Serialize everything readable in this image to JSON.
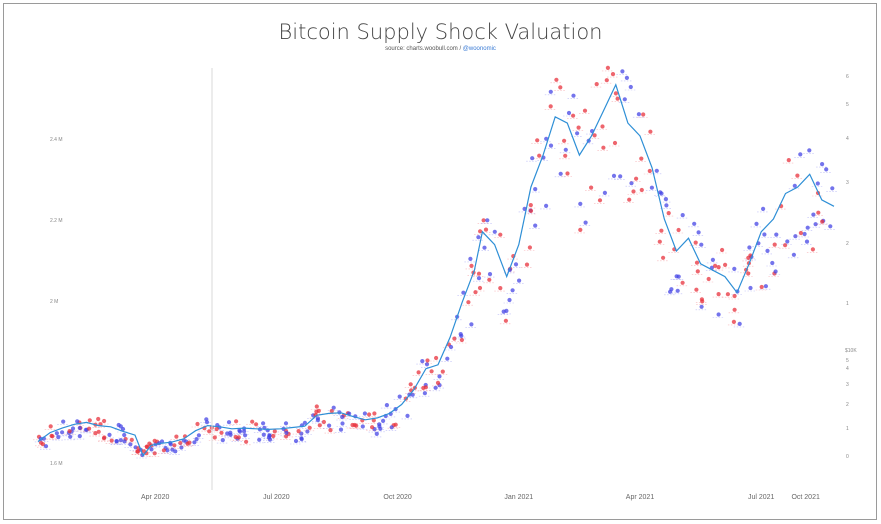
{
  "chart_data": {
    "type": "scatter",
    "title": "Bitcoin Supply Shock Valuation",
    "source_text": "source: charts.woobull.com / ",
    "source_handle": "@woonomic",
    "x_ticks": [
      "Apr 2020",
      "Jul 2020",
      "Oct 2020",
      "Jan 2021",
      "Apr 2021",
      "Jul 2021",
      "Oct 2021"
    ],
    "left_axis_ticks": [
      "1.6 M",
      "2 M",
      "2.2 M",
      "2.4 M"
    ],
    "right_axis_ticks": [
      "0",
      "1",
      "2",
      "3",
      "4",
      "5",
      "6"
    ],
    "right_axis_title": "$10K",
    "colors": {
      "price_line": "#2e8fd6",
      "high_points": "#e8323c",
      "low_points": "#4646e6"
    },
    "series": [
      {
        "type": "line",
        "x_months": [
          0.0,
          0.3,
          0.6,
          0.9,
          1.2,
          1.5,
          1.8,
          2.1,
          2.4,
          2.6,
          2.8,
          3.0,
          3.3,
          3.6,
          3.9,
          4.2,
          4.5,
          4.8,
          5.1,
          5.4,
          5.7,
          6.0,
          6.3,
          6.6,
          6.9,
          7.2,
          7.5,
          7.8,
          8.1,
          8.4,
          8.7,
          9.0,
          9.3,
          9.6,
          9.9,
          10.2,
          10.5,
          10.8,
          11.0,
          11.3,
          11.6,
          11.9,
          12.2,
          12.5,
          12.8,
          13.1,
          13.4,
          13.7,
          14.0,
          14.3,
          14.6,
          14.9,
          15.2,
          15.5,
          15.8,
          16.1,
          16.4,
          16.7,
          17.0,
          17.3,
          17.6,
          17.9,
          18.2,
          18.5,
          18.8,
          19.1,
          19.4,
          19.7
        ],
        "y_usd": [
          7200,
          8600,
          9300,
          9900,
          10200,
          9700,
          9500,
          8800,
          8200,
          5000,
          6600,
          6900,
          7100,
          7600,
          8900,
          9700,
          9500,
          9200,
          9300,
          9200,
          9100,
          9200,
          9400,
          9600,
          11300,
          11600,
          11700,
          11100,
          10600,
          10900,
          11600,
          13000,
          15300,
          18600,
          19200,
          23500,
          29000,
          34000,
          40000,
          38000,
          33000,
          38000,
          47000,
          52000,
          58000,
          57000,
          52000,
          55000,
          59000,
          63000,
          57000,
          55000,
          50000,
          42000,
          37000,
          39000,
          35000,
          34000,
          33000,
          30500,
          35000,
          40000,
          42000,
          46000,
          47000,
          49000,
          45000,
          44000
        ]
      }
    ]
  }
}
